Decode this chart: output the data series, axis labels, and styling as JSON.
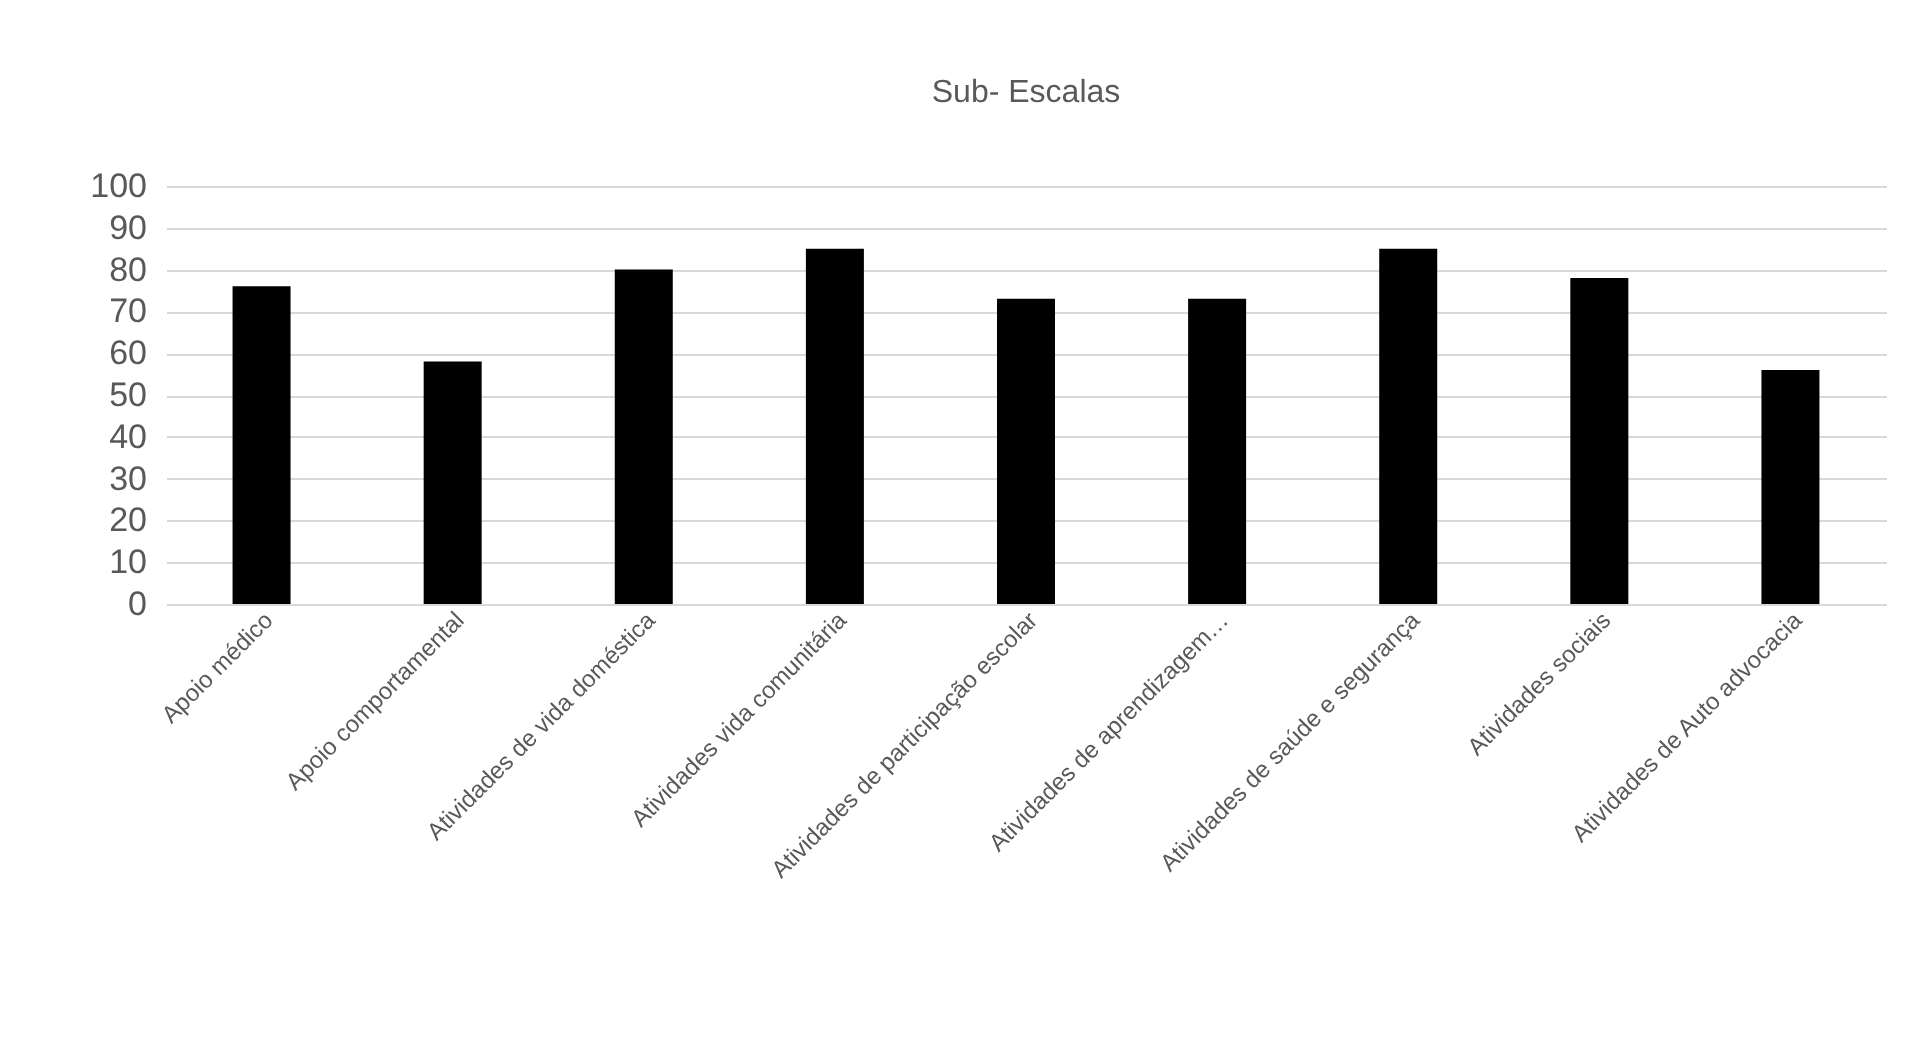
{
  "chart_data": {
    "type": "bar",
    "title": "Sub- Escalas",
    "categories": [
      "Apoio médico",
      "Apoio comportamental",
      "Atividades de vida doméstica",
      "Atividades vida comunitária",
      "Atividades de participação escolar",
      "Atividades de aprendizagem…",
      "Atividades de saúde e segurança",
      "Atividades sociais",
      "Atividades de Auto advocacia"
    ],
    "values": [
      76,
      58,
      80,
      85,
      73,
      73,
      85,
      78,
      56
    ],
    "color": "#000000",
    "ylim": [
      0,
      100
    ],
    "yticks": [
      0,
      10,
      20,
      30,
      40,
      50,
      60,
      70,
      80,
      90,
      100
    ],
    "grid": "y"
  }
}
